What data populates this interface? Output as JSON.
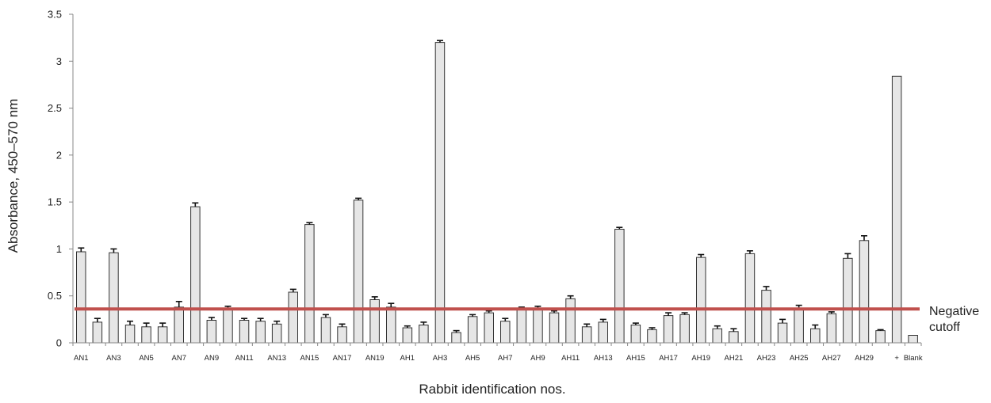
{
  "chart_data": {
    "type": "bar",
    "xlabel": "Rabbit identification nos.",
    "ylabel": "Absorbance, 450–570 nm",
    "ylim": [
      0,
      3.5
    ],
    "yticks": [
      "0",
      "0.5",
      "1",
      "1.5",
      "2",
      "2.5",
      "3",
      "3.5"
    ],
    "ytick_values": [
      0,
      0.5,
      1,
      1.5,
      2,
      2.5,
      3,
      3.5
    ],
    "grid": false,
    "categories": [
      "AN1",
      "AN2",
      "AN3",
      "AN4",
      "AN5",
      "AN6",
      "AN7",
      "AN8",
      "AN9",
      "AN10",
      "AN11",
      "AN12",
      "AN13",
      "AN14",
      "AN15",
      "AN16",
      "AN17",
      "AN18",
      "AN19",
      "AN20",
      "AH1",
      "AH2",
      "AH3",
      "AH4",
      "AH5",
      "AH6",
      "AH7",
      "AH8",
      "AH9",
      "AH10",
      "AH11",
      "AH12",
      "AH13",
      "AH14",
      "AH15",
      "AH16",
      "AH17",
      "AH18",
      "AH19",
      "AH20",
      "AH21",
      "AH22",
      "AH23",
      "AH24",
      "AH25",
      "AH26",
      "AH27",
      "AH28",
      "AH29",
      "AH30",
      "+",
      "Blank"
    ],
    "shown_labels": [
      "AN1",
      "",
      "AN3",
      "",
      "AN5",
      "",
      "AN7",
      "",
      "AN9",
      "",
      "AN11",
      "",
      "AN13",
      "",
      "AN15",
      "",
      "AN17",
      "",
      "AN19",
      "",
      "AH1",
      "",
      "AH3",
      "",
      "AH5",
      "",
      "AH7",
      "",
      "AH9",
      "",
      "AH11",
      "",
      "AH13",
      "",
      "AH15",
      "",
      "AH17",
      "",
      "AH19",
      "",
      "AH21",
      "",
      "AH23",
      "",
      "AH25",
      "",
      "AH27",
      "",
      "AH29",
      "",
      "+",
      "Blank"
    ],
    "values": [
      0.97,
      0.22,
      0.96,
      0.19,
      0.17,
      0.17,
      0.38,
      1.45,
      0.24,
      0.37,
      0.24,
      0.23,
      0.2,
      0.54,
      1.26,
      0.27,
      0.17,
      1.52,
      0.46,
      0.38,
      0.16,
      0.19,
      3.2,
      0.11,
      0.28,
      0.32,
      0.23,
      0.37,
      0.37,
      0.32,
      0.47,
      0.17,
      0.22,
      1.21,
      0.19,
      0.14,
      0.29,
      0.3,
      0.91,
      0.15,
      0.12,
      0.95,
      0.56,
      0.21,
      0.37,
      0.15,
      0.31,
      0.9,
      1.09,
      0.13,
      2.84,
      0.08
    ],
    "errors": [
      0.04,
      0.04,
      0.04,
      0.04,
      0.04,
      0.04,
      0.06,
      0.04,
      0.03,
      0.02,
      0.02,
      0.03,
      0.03,
      0.03,
      0.02,
      0.03,
      0.03,
      0.02,
      0.03,
      0.04,
      0.02,
      0.03,
      0.02,
      0.02,
      0.02,
      0.02,
      0.03,
      0.01,
      0.02,
      0.02,
      0.03,
      0.03,
      0.03,
      0.02,
      0.02,
      0.02,
      0.03,
      0.02,
      0.03,
      0.03,
      0.03,
      0.03,
      0.04,
      0.04,
      0.03,
      0.04,
      0.02,
      0.05,
      0.05,
      0.01,
      0,
      0
    ],
    "cutoff": {
      "value": 0.36,
      "label_line1": "Negative",
      "label_line2": "cutoff",
      "color": "#c0504d"
    },
    "colors": {
      "bar_fill": "#e6e6e6",
      "bar_stroke": "#333333",
      "axis": "#888888"
    }
  }
}
